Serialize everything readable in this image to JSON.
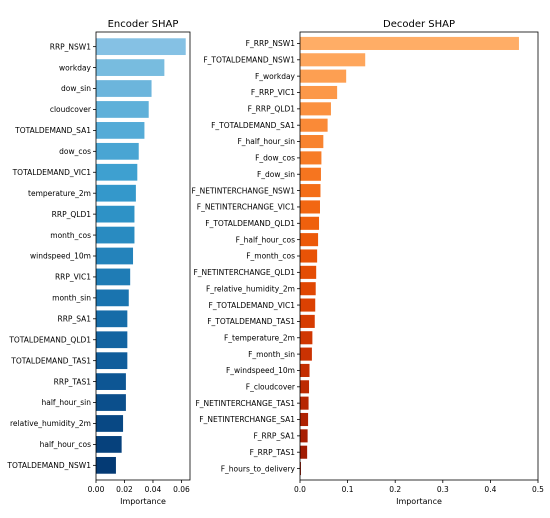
{
  "chart_data": [
    {
      "type": "bar",
      "orientation": "horizontal",
      "title": "Encoder SHAP",
      "xlabel": "Importance",
      "xlim": [
        0,
        0.066
      ],
      "xticks": [
        "0.00",
        "0.02",
        "0.04",
        "0.06"
      ],
      "grid": false,
      "categories": [
        "RRP_NSW1",
        "workday",
        "dow_sin",
        "cloudcover",
        "TOTALDEMAND_SA1",
        "dow_cos",
        "TOTALDEMAND_VIC1",
        "temperature_2m",
        "RRP_QLD1",
        "month_cos",
        "windspeed_10m",
        "RRP_VIC1",
        "month_sin",
        "RRP_SA1",
        "TOTALDEMAND_QLD1",
        "TOTALDEMAND_TAS1",
        "RRP_TAS1",
        "half_hour_sin",
        "relative_humidity_2m",
        "half_hour_cos",
        "TOTALDEMAND_NSW1"
      ],
      "values": [
        0.063,
        0.048,
        0.039,
        0.037,
        0.034,
        0.03,
        0.029,
        0.028,
        0.027,
        0.027,
        0.026,
        0.024,
        0.023,
        0.022,
        0.022,
        0.022,
        0.021,
        0.021,
        0.019,
        0.018,
        0.014
      ],
      "colors": [
        "#85c1e4",
        "#78bcdf",
        "#6cb5dc",
        "#5fb0d9",
        "#54abd7",
        "#49a5d3",
        "#3ea0d0",
        "#3498cb",
        "#2e92c6",
        "#298bc1",
        "#2483bb",
        "#1f7cb5",
        "#1a74af",
        "#166ca8",
        "#1364a1",
        "#105d9b",
        "#0d5694",
        "#0b4f8c",
        "#084884",
        "#06417c",
        "#043a74"
      ]
    },
    {
      "type": "bar",
      "orientation": "horizontal",
      "title": "Decoder SHAP",
      "xlabel": "Importance",
      "xlim": [
        0,
        0.5
      ],
      "xticks": [
        "0.0",
        "0.1",
        "0.2",
        "0.3",
        "0.4",
        "0.5"
      ],
      "grid": false,
      "categories": [
        "F_RRP_NSW1",
        "F_TOTALDEMAND_NSW1",
        "F_workday",
        "F_RRP_VIC1",
        "F_RRP_QLD1",
        "F_TOTALDEMAND_SA1",
        "F_half_hour_sin",
        "F_dow_cos",
        "F_dow_sin",
        "F_NETINTERCHANGE_NSW1",
        "F_NETINTERCHANGE_VIC1",
        "F_TOTALDEMAND_QLD1",
        "F_half_hour_cos",
        "F_month_cos",
        "F_NETINTERCHANGE_QLD1",
        "F_relative_humidity_2m",
        "F_TOTALDEMAND_VIC1",
        "F_TOTALDEMAND_TAS1",
        "F_temperature_2m",
        "F_month_sin",
        "F_windspeed_10m",
        "F_cloudcover",
        "F_NETINTERCHANGE_TAS1",
        "F_NETINTERCHANGE_SA1",
        "F_RRP_SA1",
        "F_RRP_TAS1",
        "F_hours_to_delivery"
      ],
      "values": [
        0.46,
        0.137,
        0.097,
        0.078,
        0.065,
        0.058,
        0.049,
        0.045,
        0.044,
        0.043,
        0.042,
        0.04,
        0.038,
        0.036,
        0.034,
        0.033,
        0.032,
        0.031,
        0.026,
        0.025,
        0.02,
        0.019,
        0.018,
        0.017,
        0.016,
        0.015,
        0.002
      ],
      "colors": [
        "#ffad66",
        "#fea65c",
        "#fd9f52",
        "#fc9849",
        "#fb9140",
        "#fa8a37",
        "#f8832f",
        "#f77c27",
        "#f6751f",
        "#f46e18",
        "#f26712",
        "#ef600d",
        "#ec5909",
        "#e85306",
        "#e44d04",
        "#e04703",
        "#db4102",
        "#d63c02",
        "#d03702",
        "#ca3202",
        "#c42e02",
        "#bd2a02",
        "#b62602",
        "#af2202",
        "#a81e02",
        "#a11b02",
        "#9a1802"
      ]
    }
  ]
}
